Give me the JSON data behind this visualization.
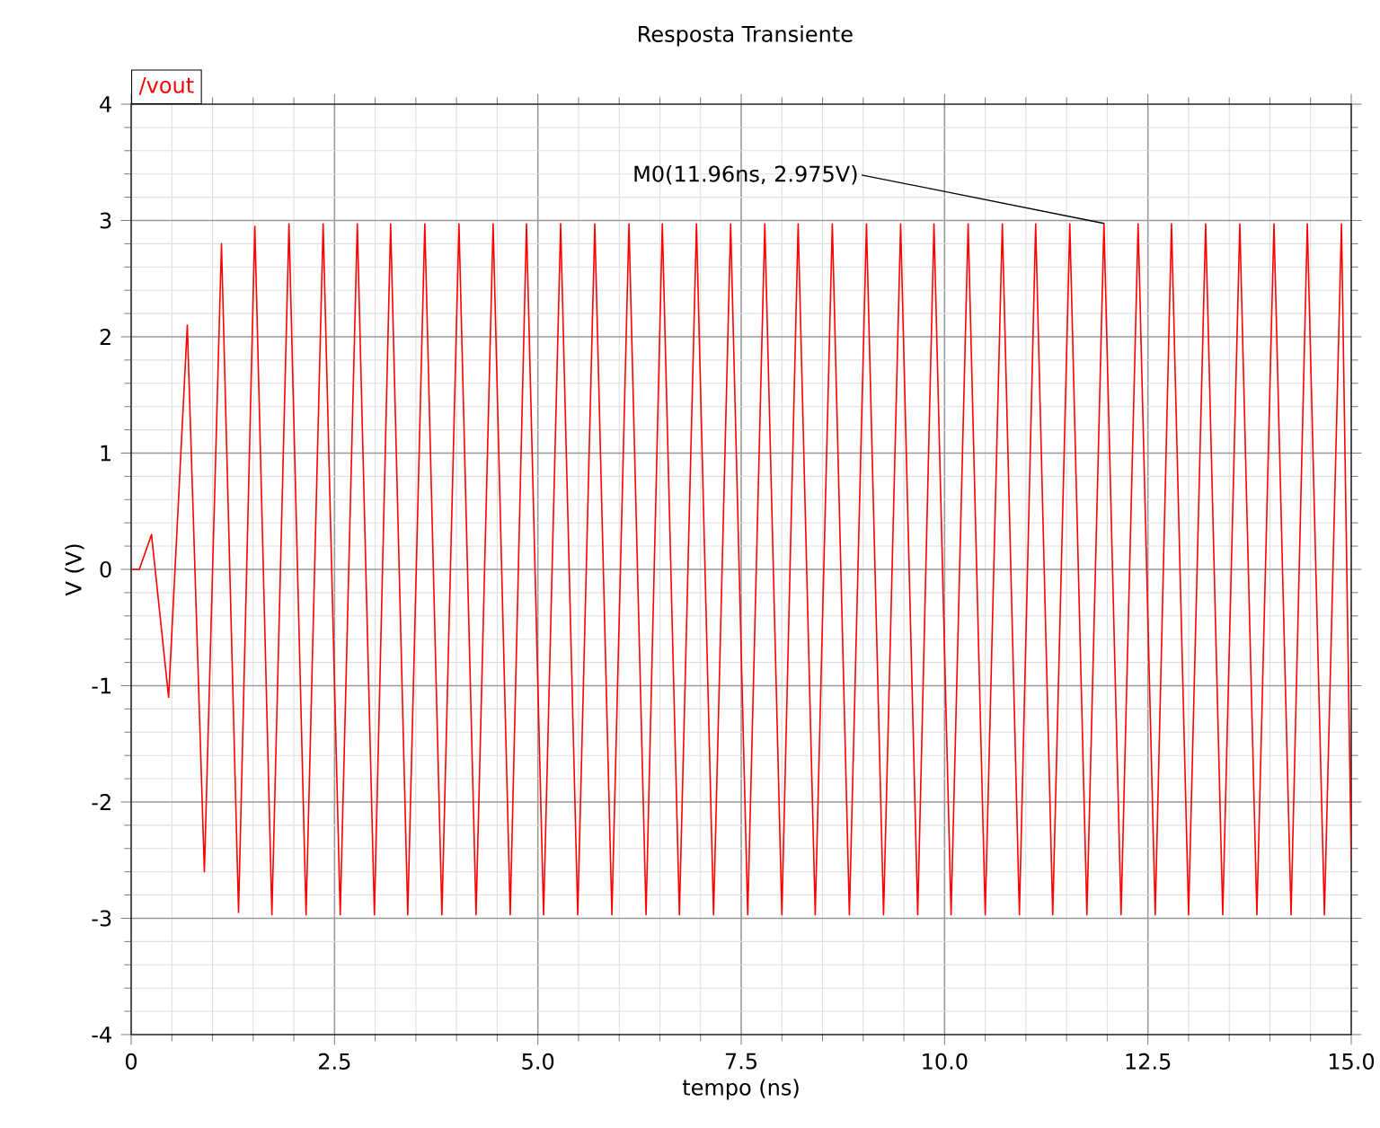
{
  "chart_data": {
    "type": "line",
    "title": "Resposta Transiente",
    "xlabel": "tempo (ns)",
    "ylabel": "V (V)",
    "xlim": [
      0,
      15
    ],
    "ylim": [
      -4,
      4
    ],
    "xticks": [
      0,
      2.5,
      {
        "value": 5,
        "label": "5.0"
      },
      7.5,
      {
        "value": 10,
        "label": "10.0"
      },
      12.5,
      {
        "value": 15,
        "label": "15.0"
      }
    ],
    "yticks": [
      -4,
      -3,
      -2,
      -1,
      0,
      1,
      2,
      3,
      4
    ],
    "grid": true,
    "legend": "top left",
    "annotations": [
      {
        "text": "M0(11.96ns, 2.975V)",
        "x": 11.96,
        "y": 2.975
      }
    ],
    "series": [
      {
        "name": "/vout",
        "color": "#ff0000",
        "x": [
          0,
          0.1,
          0.25,
          0.46,
          0.69,
          0.9,
          1.11,
          1.32,
          1.52,
          1.73,
          1.94,
          2.15,
          2.36,
          2.57,
          2.78,
          2.99,
          3.19,
          3.4,
          3.61,
          3.82,
          4.03,
          4.24,
          4.45,
          4.66,
          4.86,
          5.07,
          5.28,
          5.49,
          5.7,
          5.91,
          6.12,
          6.33,
          6.53,
          6.74,
          6.95,
          7.16,
          7.37,
          7.58,
          7.79,
          8.0,
          8.2,
          8.41,
          8.62,
          8.83,
          9.04,
          9.25,
          9.46,
          9.67,
          9.87,
          10.08,
          10.29,
          10.5,
          10.71,
          10.92,
          11.12,
          11.33,
          11.54,
          11.75,
          11.96,
          12.17,
          12.38,
          12.59,
          12.79,
          13.0,
          13.21,
          13.42,
          13.63,
          13.84,
          14.05,
          14.26,
          14.46,
          14.67,
          14.88,
          15.0
        ],
        "values": [
          0,
          0,
          0.3,
          -1.1,
          2.1,
          -2.6,
          2.8,
          -2.95,
          2.95,
          -2.97,
          2.97,
          -2.97,
          2.97,
          -2.97,
          2.97,
          -2.97,
          2.97,
          -2.97,
          2.97,
          -2.97,
          2.97,
          -2.97,
          2.97,
          -2.97,
          2.97,
          -2.97,
          2.97,
          -2.97,
          2.97,
          -2.97,
          2.97,
          -2.97,
          2.97,
          -2.97,
          2.97,
          -2.97,
          2.97,
          -2.97,
          2.97,
          -2.97,
          2.97,
          -2.97,
          2.97,
          -2.97,
          2.97,
          -2.97,
          2.97,
          -2.97,
          2.97,
          -2.97,
          2.97,
          -2.97,
          2.97,
          -2.97,
          2.97,
          -2.97,
          2.97,
          -2.97,
          2.975,
          -2.97,
          2.97,
          -2.97,
          2.97,
          -2.97,
          2.97,
          -2.97,
          2.97,
          -2.97,
          2.97,
          -2.97,
          2.97,
          -2.97,
          2.97,
          -2.5
        ]
      }
    ]
  }
}
